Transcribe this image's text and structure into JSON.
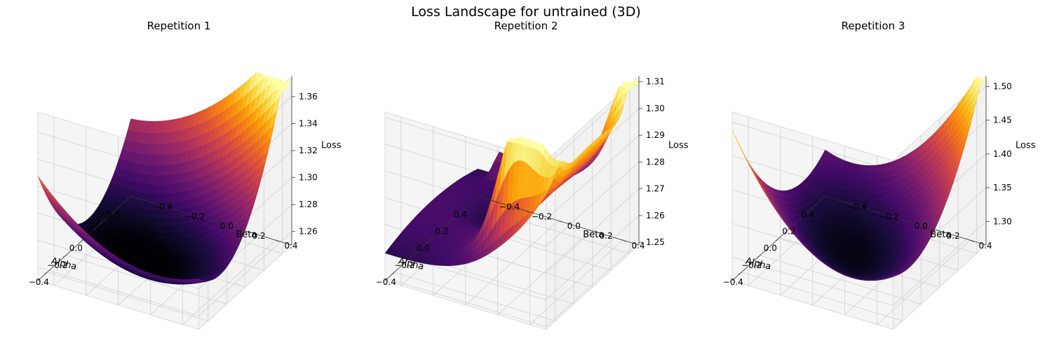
{
  "figure_title": "Loss Landscape for untrained (3D)",
  "colormap": "inferno",
  "chart_data": [
    {
      "type": "surface3d",
      "title": "Repetition 1",
      "xlabel": "Alpha",
      "ylabel": "Beta",
      "zlabel": "Loss",
      "xlim": [
        -0.5,
        0.5
      ],
      "ylim": [
        -0.5,
        0.5
      ],
      "zlim": [
        1.25,
        1.375
      ],
      "xticks": [
        -0.4,
        -0.2,
        0.0,
        0.2,
        0.4
      ],
      "xtick_labels": [
        "−0.4",
        "−0.2",
        "0.0",
        "0.2",
        "0.4"
      ],
      "yticks": [
        -0.4,
        -0.2,
        0.0,
        0.2,
        0.4
      ],
      "ytick_labels": [
        "−0.4",
        "−0.2",
        "0.0",
        "0.2",
        "0.4"
      ],
      "zticks": [
        1.26,
        1.28,
        1.3,
        1.32,
        1.34,
        1.36
      ],
      "ztick_labels": [
        "1.26",
        "1.28",
        "1.30",
        "1.32",
        "1.34",
        "1.36"
      ],
      "z_range": [
        1.255,
        1.37
      ],
      "corner_values": {
        "alpha_min_beta_min": 1.255,
        "alpha_max_beta_min": 1.29,
        "alpha_min_beta_max": 1.3,
        "alpha_max_beta_max": 1.37
      },
      "grid": true
    },
    {
      "type": "surface3d",
      "title": "Repetition 2",
      "xlabel": "Alpha",
      "ylabel": "Beta",
      "zlabel": "Loss",
      "xlim": [
        -0.5,
        0.5
      ],
      "ylim": [
        -0.5,
        0.5
      ],
      "zlim": [
        1.249,
        1.312
      ],
      "xticks": [
        -0.4,
        -0.2,
        0.0,
        0.2,
        0.4
      ],
      "xtick_labels": [
        "−0.4",
        "−0.2",
        "0.0",
        "0.2",
        "0.4"
      ],
      "yticks": [
        -0.4,
        -0.2,
        0.0,
        0.2,
        0.4
      ],
      "ytick_labels": [
        "−0.4",
        "−0.2",
        "0.0",
        "0.2",
        "0.4"
      ],
      "zticks": [
        1.25,
        1.26,
        1.27,
        1.28,
        1.29,
        1.3,
        1.31
      ],
      "ztick_labels": [
        "1.25",
        "1.26",
        "1.27",
        "1.28",
        "1.29",
        "1.30",
        "1.31"
      ],
      "z_range": [
        1.25,
        1.31
      ],
      "corner_values": {
        "alpha_min_beta_min": 1.25,
        "alpha_max_beta_min": 1.27,
        "alpha_min_beta_max": 1.31,
        "alpha_max_beta_max": 1.31
      },
      "grid": true
    },
    {
      "type": "surface3d",
      "title": "Repetition 3",
      "xlabel": "Alpha",
      "ylabel": "Beta",
      "zlabel": "Loss",
      "xlim": [
        -0.5,
        0.5
      ],
      "ylim": [
        -0.5,
        0.5
      ],
      "zlim": [
        1.265,
        1.515
      ],
      "xticks": [
        -0.4,
        -0.2,
        0.0,
        0.2,
        0.4
      ],
      "xtick_labels": [
        "−0.4",
        "−0.2",
        "0.0",
        "0.2",
        "0.4"
      ],
      "yticks": [
        -0.4,
        -0.2,
        0.0,
        0.2,
        0.4
      ],
      "ytick_labels": [
        "−0.4",
        "−0.2",
        "0.0",
        "0.2",
        "0.4"
      ],
      "zticks": [
        1.3,
        1.35,
        1.4,
        1.45,
        1.5
      ],
      "ztick_labels": [
        "1.30",
        "1.35",
        "1.40",
        "1.45",
        "1.50"
      ],
      "z_range": [
        1.27,
        1.51
      ],
      "corner_values": {
        "alpha_min_beta_min": 1.29,
        "alpha_max_beta_min": 1.32,
        "alpha_min_beta_max": 1.36,
        "alpha_max_beta_max": 1.51
      },
      "grid": true
    }
  ]
}
